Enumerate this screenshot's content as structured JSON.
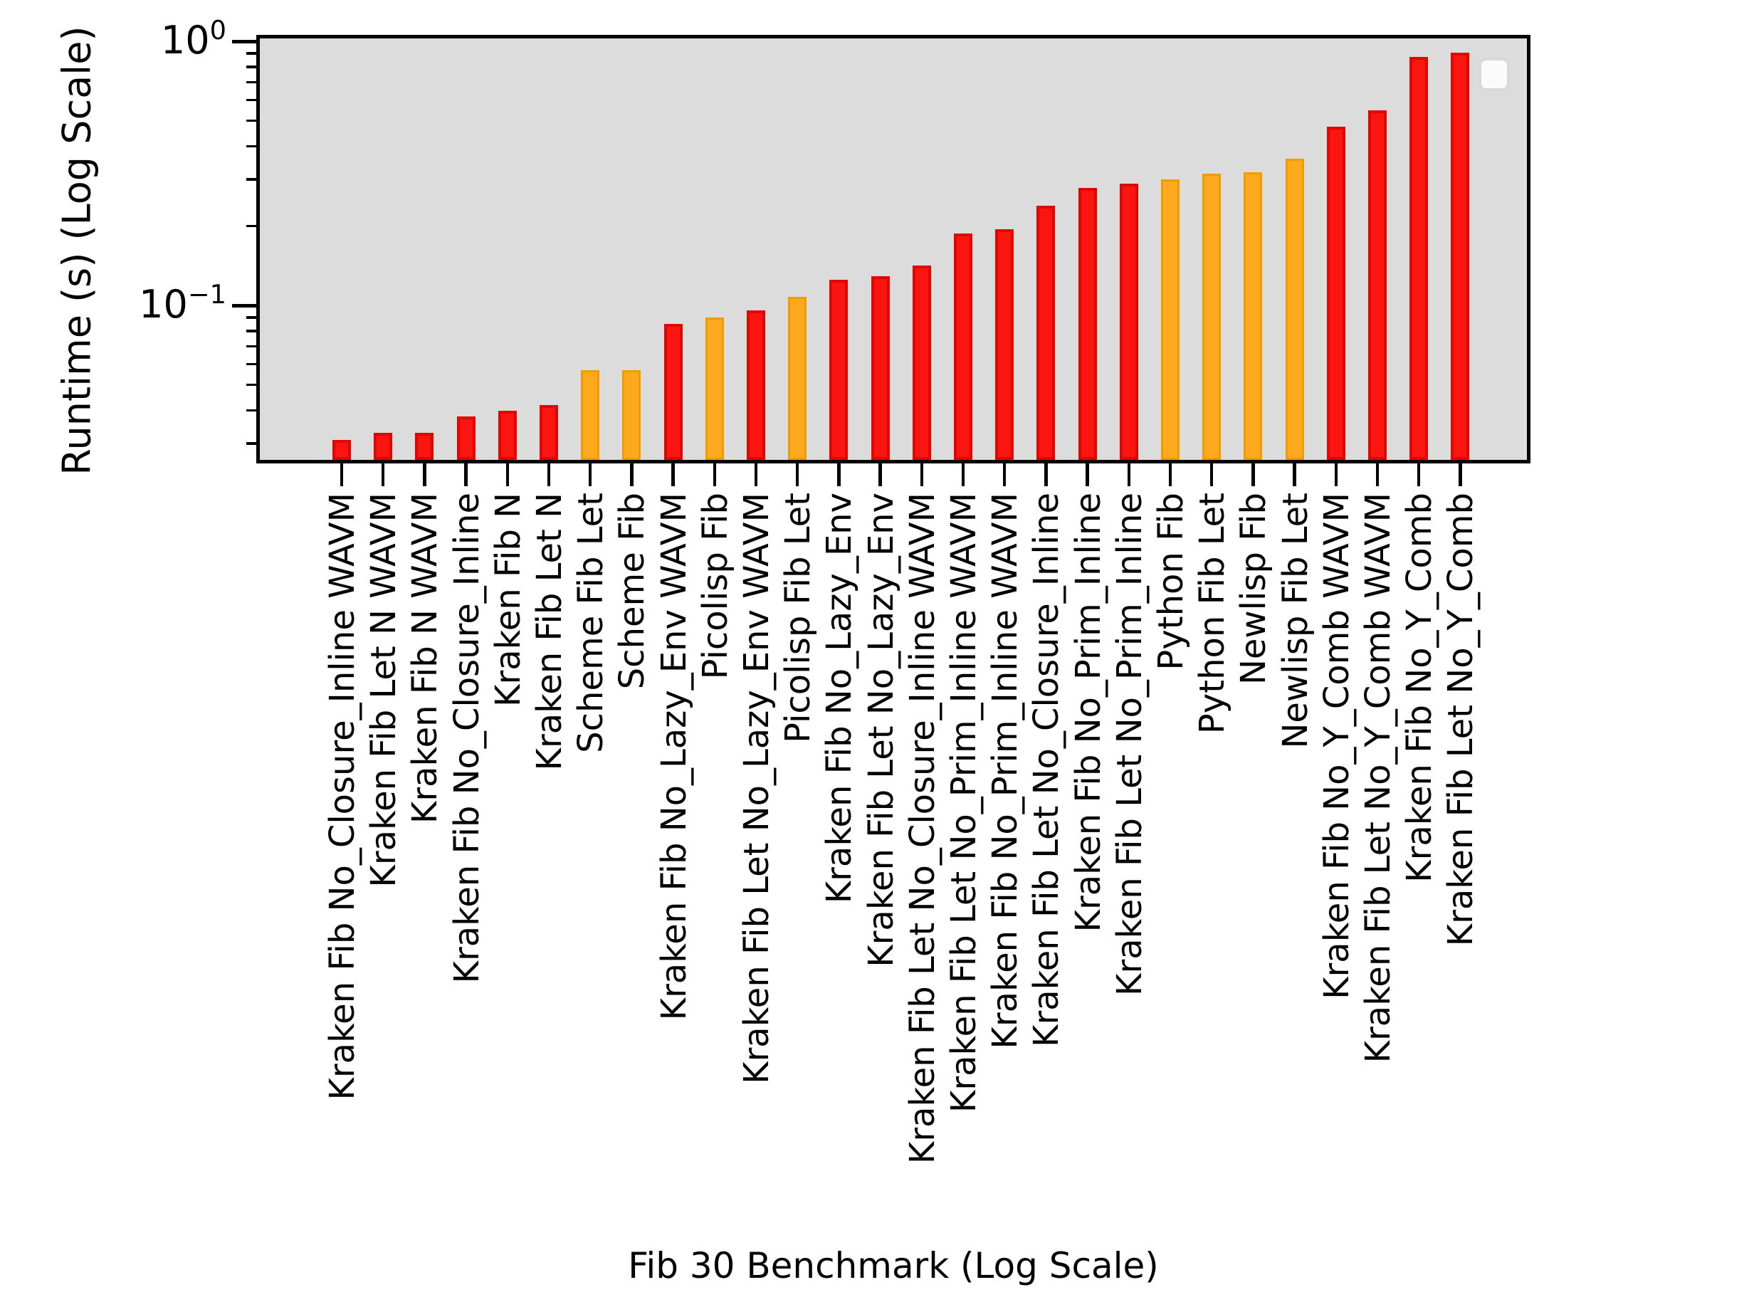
{
  "chart_data": {
    "type": "bar",
    "title": "",
    "xlabel": "Fib 30 Benchmark (Log Scale)",
    "ylabel": "Runtime (s) (Log Scale)",
    "yscale": "log",
    "ylim": [
      0.026,
      1.03
    ],
    "grid": false,
    "legend_position": "upper right",
    "legend_items": [],
    "ytick_labels": [
      {
        "mantissa": "10",
        "exponent": "0",
        "value": 1.0
      },
      {
        "mantissa": "10",
        "exponent": "−1",
        "value": 0.1
      }
    ],
    "minor_tick_values": [
      0.9,
      0.8,
      0.7,
      0.6,
      0.5,
      0.4,
      0.3,
      0.2,
      0.09,
      0.08,
      0.07,
      0.06,
      0.05,
      0.04,
      0.03
    ],
    "categories": [
      "Kraken Fib No_Closure_Inline WAVM",
      "Kraken Fib Let N WAVM",
      "Kraken Fib N WAVM",
      "Kraken Fib No_Closure_Inline",
      "Kraken Fib N",
      "Kraken Fib Let N",
      "Scheme Fib Let",
      "Scheme Fib",
      "Kraken Fib No_Lazy_Env WAVM",
      "Picolisp Fib",
      "Kraken Fib Let No_Lazy_Env WAVM",
      "Picolisp Fib Let",
      "Kraken Fib No_Lazy_Env",
      "Kraken Fib Let No_Lazy_Env",
      "Kraken Fib Let No_Closure_Inline WAVM",
      "Kraken Fib Let No_Prim_Inline WAVM",
      "Kraken Fib No_Prim_Inline WAVM",
      "Kraken Fib Let No_Closure_Inline",
      "Kraken Fib No_Prim_Inline",
      "Kraken Fib Let No_Prim_Inline",
      "Python Fib",
      "Python Fib Let",
      "Newlisp Fib",
      "Newlisp Fib Let",
      "Kraken Fib No_Y_Comb WAVM",
      "Kraken Fib Let No_Y_Comb WAVM",
      "Kraken Fib No_Y_Comb",
      "Kraken Fib Let No_Y_Comb"
    ],
    "values": [
      0.031,
      0.033,
      0.033,
      0.038,
      0.04,
      0.042,
      0.057,
      0.057,
      0.085,
      0.09,
      0.096,
      0.108,
      0.125,
      0.129,
      0.142,
      0.187,
      0.194,
      0.238,
      0.278,
      0.289,
      0.3,
      0.315,
      0.319,
      0.359,
      0.475,
      0.548,
      0.875,
      0.905
    ],
    "bar_colors": [
      "red",
      "red",
      "red",
      "red",
      "red",
      "red",
      "orange",
      "orange",
      "red",
      "orange",
      "red",
      "orange",
      "red",
      "red",
      "red",
      "red",
      "red",
      "red",
      "red",
      "red",
      "orange",
      "orange",
      "orange",
      "orange",
      "red",
      "red",
      "red",
      "red"
    ]
  },
  "colors": {
    "red": "#fb1511",
    "orange": "#fca91e",
    "plot_background": "#dcdcdc",
    "figure_background": "#ffffff",
    "axis": "#000000"
  }
}
